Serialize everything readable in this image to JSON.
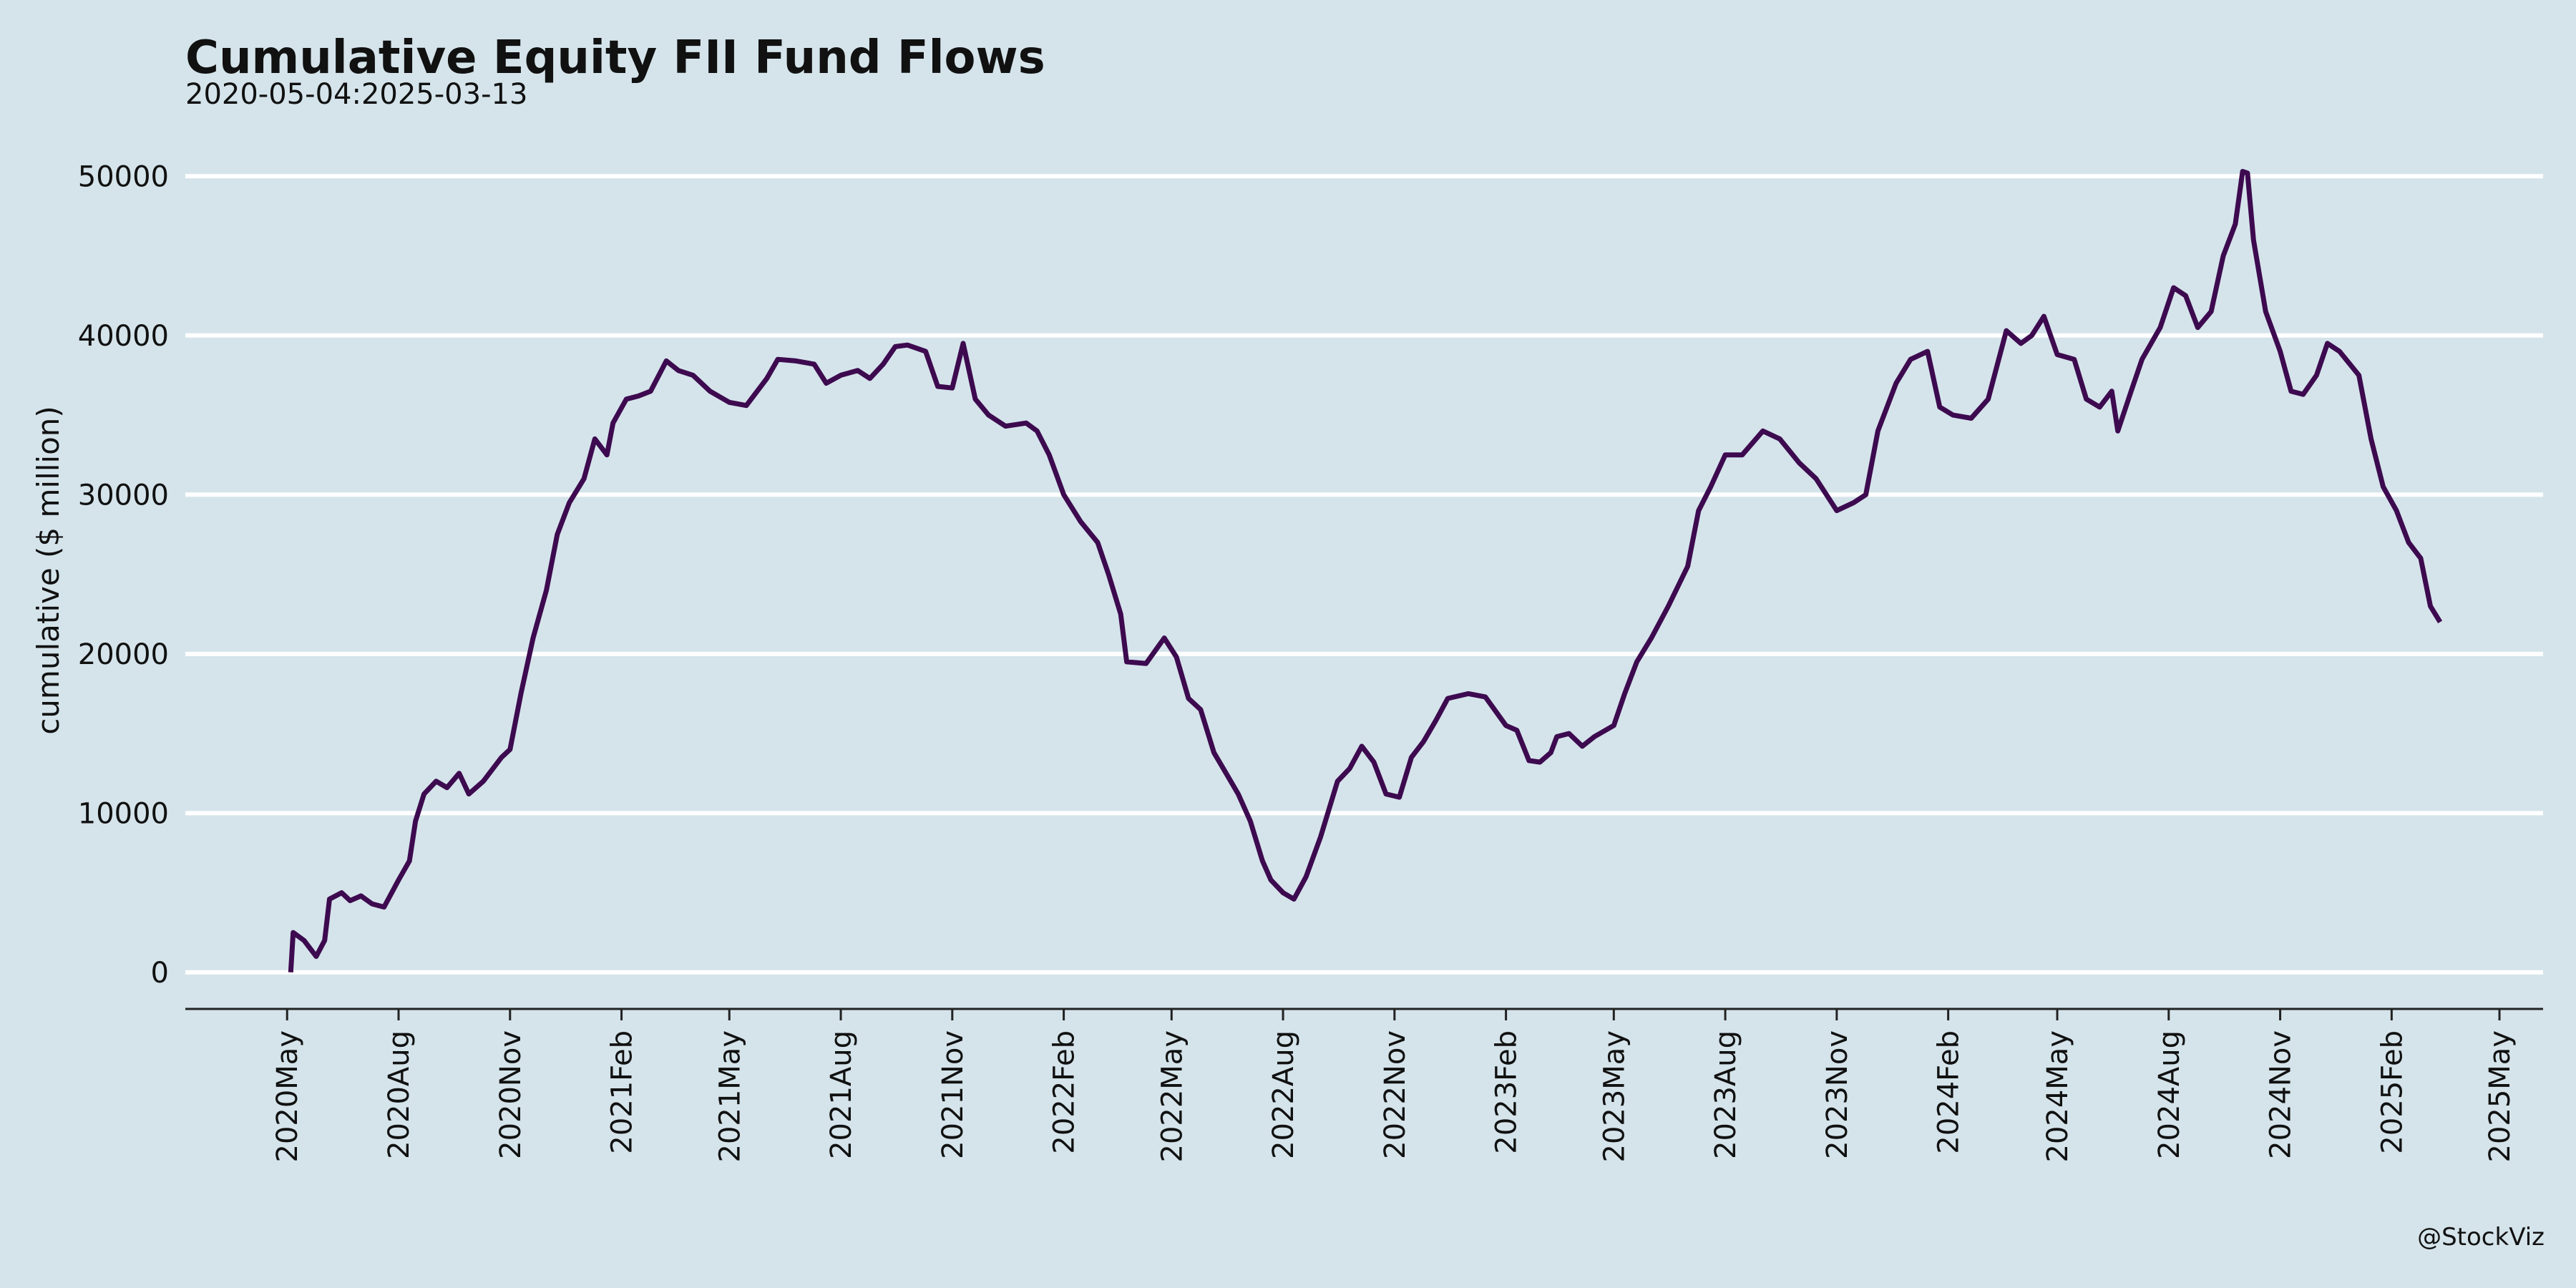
{
  "chart_data": {
    "type": "line",
    "title": "Cumulative Equity FII Fund Flows",
    "subtitle": "2020-05-04:2025-03-13",
    "y_label": "cumulative ($ million)",
    "caption": "@StockViz",
    "grid": true,
    "xlim": [
      "2020-02-07",
      "2025-06-06"
    ],
    "ylim": [
      -2300,
      52800
    ],
    "yticks": [
      0,
      10000,
      20000,
      30000,
      40000,
      50000
    ],
    "xticks": [
      {
        "value": "2020-05-01",
        "label": "2020May"
      },
      {
        "value": "2020-08-01",
        "label": "2020Aug"
      },
      {
        "value": "2020-11-01",
        "label": "2020Nov"
      },
      {
        "value": "2021-02-01",
        "label": "2021Feb"
      },
      {
        "value": "2021-05-01",
        "label": "2021May"
      },
      {
        "value": "2021-08-01",
        "label": "2021Aug"
      },
      {
        "value": "2021-11-01",
        "label": "2021Nov"
      },
      {
        "value": "2022-02-01",
        "label": "2022Feb"
      },
      {
        "value": "2022-05-01",
        "label": "2022May"
      },
      {
        "value": "2022-08-01",
        "label": "2022Aug"
      },
      {
        "value": "2022-11-01",
        "label": "2022Nov"
      },
      {
        "value": "2023-02-01",
        "label": "2023Feb"
      },
      {
        "value": "2023-05-01",
        "label": "2023May"
      },
      {
        "value": "2023-08-01",
        "label": "2023Aug"
      },
      {
        "value": "2023-11-01",
        "label": "2023Nov"
      },
      {
        "value": "2024-02-01",
        "label": "2024Feb"
      },
      {
        "value": "2024-05-01",
        "label": "2024May"
      },
      {
        "value": "2024-08-01",
        "label": "2024Aug"
      },
      {
        "value": "2024-11-01",
        "label": "2024Nov"
      },
      {
        "value": "2025-02-01",
        "label": "2025Feb"
      },
      {
        "value": "2025-05-01",
        "label": "2025May"
      }
    ],
    "x": [
      "2020-05-04",
      "2020-05-06",
      "2020-05-15",
      "2020-05-25",
      "2020-06-01",
      "2020-06-05",
      "2020-06-15",
      "2020-06-22",
      "2020-07-01",
      "2020-07-10",
      "2020-07-20",
      "2020-08-01",
      "2020-08-10",
      "2020-08-15",
      "2020-08-22",
      "2020-09-01",
      "2020-09-10",
      "2020-09-20",
      "2020-09-28",
      "2020-10-10",
      "2020-10-25",
      "2020-11-01",
      "2020-11-10",
      "2020-11-20",
      "2020-12-01",
      "2020-12-10",
      "2020-12-20",
      "2021-01-01",
      "2021-01-10",
      "2021-01-20",
      "2021-01-25",
      "2021-02-05",
      "2021-02-15",
      "2021-02-25",
      "2021-03-10",
      "2021-03-20",
      "2021-04-01",
      "2021-04-15",
      "2021-05-01",
      "2021-05-15",
      "2021-06-01",
      "2021-06-10",
      "2021-06-25",
      "2021-07-10",
      "2021-07-20",
      "2021-08-01",
      "2021-08-15",
      "2021-08-25",
      "2021-09-05",
      "2021-09-15",
      "2021-09-25",
      "2021-10-10",
      "2021-10-20",
      "2021-11-01",
      "2021-11-10",
      "2021-11-20",
      "2021-12-01",
      "2021-12-15",
      "2022-01-01",
      "2022-01-10",
      "2022-01-20",
      "2022-02-01",
      "2022-02-15",
      "2022-03-01",
      "2022-03-10",
      "2022-03-20",
      "2022-03-25",
      "2022-04-10",
      "2022-04-25",
      "2022-05-05",
      "2022-05-15",
      "2022-05-25",
      "2022-06-05",
      "2022-06-15",
      "2022-06-25",
      "2022-07-05",
      "2022-07-15",
      "2022-07-22",
      "2022-08-01",
      "2022-08-10",
      "2022-08-20",
      "2022-09-01",
      "2022-09-15",
      "2022-09-25",
      "2022-10-05",
      "2022-10-15",
      "2022-10-25",
      "2022-11-05",
      "2022-11-15",
      "2022-11-25",
      "2022-12-05",
      "2022-12-15",
      "2023-01-01",
      "2023-01-15",
      "2023-02-01",
      "2023-02-10",
      "2023-02-20",
      "2023-03-01",
      "2023-03-10",
      "2023-03-15",
      "2023-03-25",
      "2023-04-05",
      "2023-04-15",
      "2023-05-01",
      "2023-05-10",
      "2023-05-20",
      "2023-06-01",
      "2023-06-15",
      "2023-07-01",
      "2023-07-10",
      "2023-07-20",
      "2023-08-01",
      "2023-08-15",
      "2023-09-01",
      "2023-09-15",
      "2023-10-01",
      "2023-10-15",
      "2023-11-01",
      "2023-11-15",
      "2023-11-25",
      "2023-12-05",
      "2023-12-20",
      "2024-01-01",
      "2024-01-15",
      "2024-01-25",
      "2024-02-05",
      "2024-02-20",
      "2024-03-05",
      "2024-03-20",
      "2024-04-01",
      "2024-04-10",
      "2024-04-20",
      "2024-05-01",
      "2024-05-15",
      "2024-05-25",
      "2024-06-05",
      "2024-06-15",
      "2024-06-20",
      "2024-07-01",
      "2024-07-10",
      "2024-07-25",
      "2024-08-05",
      "2024-08-15",
      "2024-08-25",
      "2024-09-05",
      "2024-09-15",
      "2024-09-25",
      "2024-10-01",
      "2024-10-05",
      "2024-10-10",
      "2024-10-20",
      "2024-11-01",
      "2024-11-10",
      "2024-11-20",
      "2024-12-01",
      "2024-12-10",
      "2024-12-20",
      "2025-01-05",
      "2025-01-15",
      "2025-01-25",
      "2025-02-05",
      "2025-02-15",
      "2025-02-25",
      "2025-03-05",
      "2025-03-13"
    ],
    "series": [
      {
        "color": "#3d0a4f",
        "values": [
          0,
          2500,
          2000,
          1000,
          2000,
          4600,
          5000,
          4500,
          4800,
          4300,
          4100,
          5800,
          7000,
          9500,
          11200,
          12000,
          11600,
          12500,
          11200,
          12000,
          13500,
          14000,
          17500,
          21000,
          24000,
          27500,
          29500,
          31000,
          33500,
          32500,
          34500,
          36000,
          36200,
          36500,
          38400,
          37800,
          37500,
          36500,
          35800,
          35600,
          37300,
          38500,
          38400,
          38200,
          37000,
          37500,
          37800,
          37300,
          38200,
          39300,
          39400,
          39000,
          36800,
          36700,
          39500,
          36000,
          35000,
          34300,
          34500,
          34000,
          32500,
          30000,
          28300,
          27000,
          25000,
          22500,
          19500,
          19400,
          21000,
          19800,
          17200,
          16500,
          13800,
          12500,
          11200,
          9500,
          7000,
          5800,
          5000,
          4600,
          6000,
          8500,
          12000,
          12800,
          14200,
          13200,
          11200,
          11000,
          13500,
          14500,
          15800,
          17200,
          17500,
          17300,
          15500,
          15200,
          13300,
          13200,
          13800,
          14800,
          15000,
          14200,
          14800,
          15500,
          17500,
          19500,
          21000,
          23000,
          25500,
          29000,
          30500,
          32500,
          32500,
          34000,
          33500,
          32000,
          31000,
          29000,
          29500,
          30000,
          34000,
          37000,
          38500,
          39000,
          35500,
          35000,
          34800,
          36000,
          40300,
          39500,
          40000,
          41200,
          38800,
          38500,
          36000,
          35500,
          36500,
          34000,
          36500,
          38500,
          40500,
          43000,
          42500,
          40500,
          41500,
          45000,
          47000,
          50300,
          50200,
          46000,
          41500,
          39000,
          36500,
          36300,
          37500,
          39500,
          39000,
          37500,
          33500,
          30500,
          29000,
          27000,
          26000,
          23000,
          22000
        ]
      }
    ]
  }
}
